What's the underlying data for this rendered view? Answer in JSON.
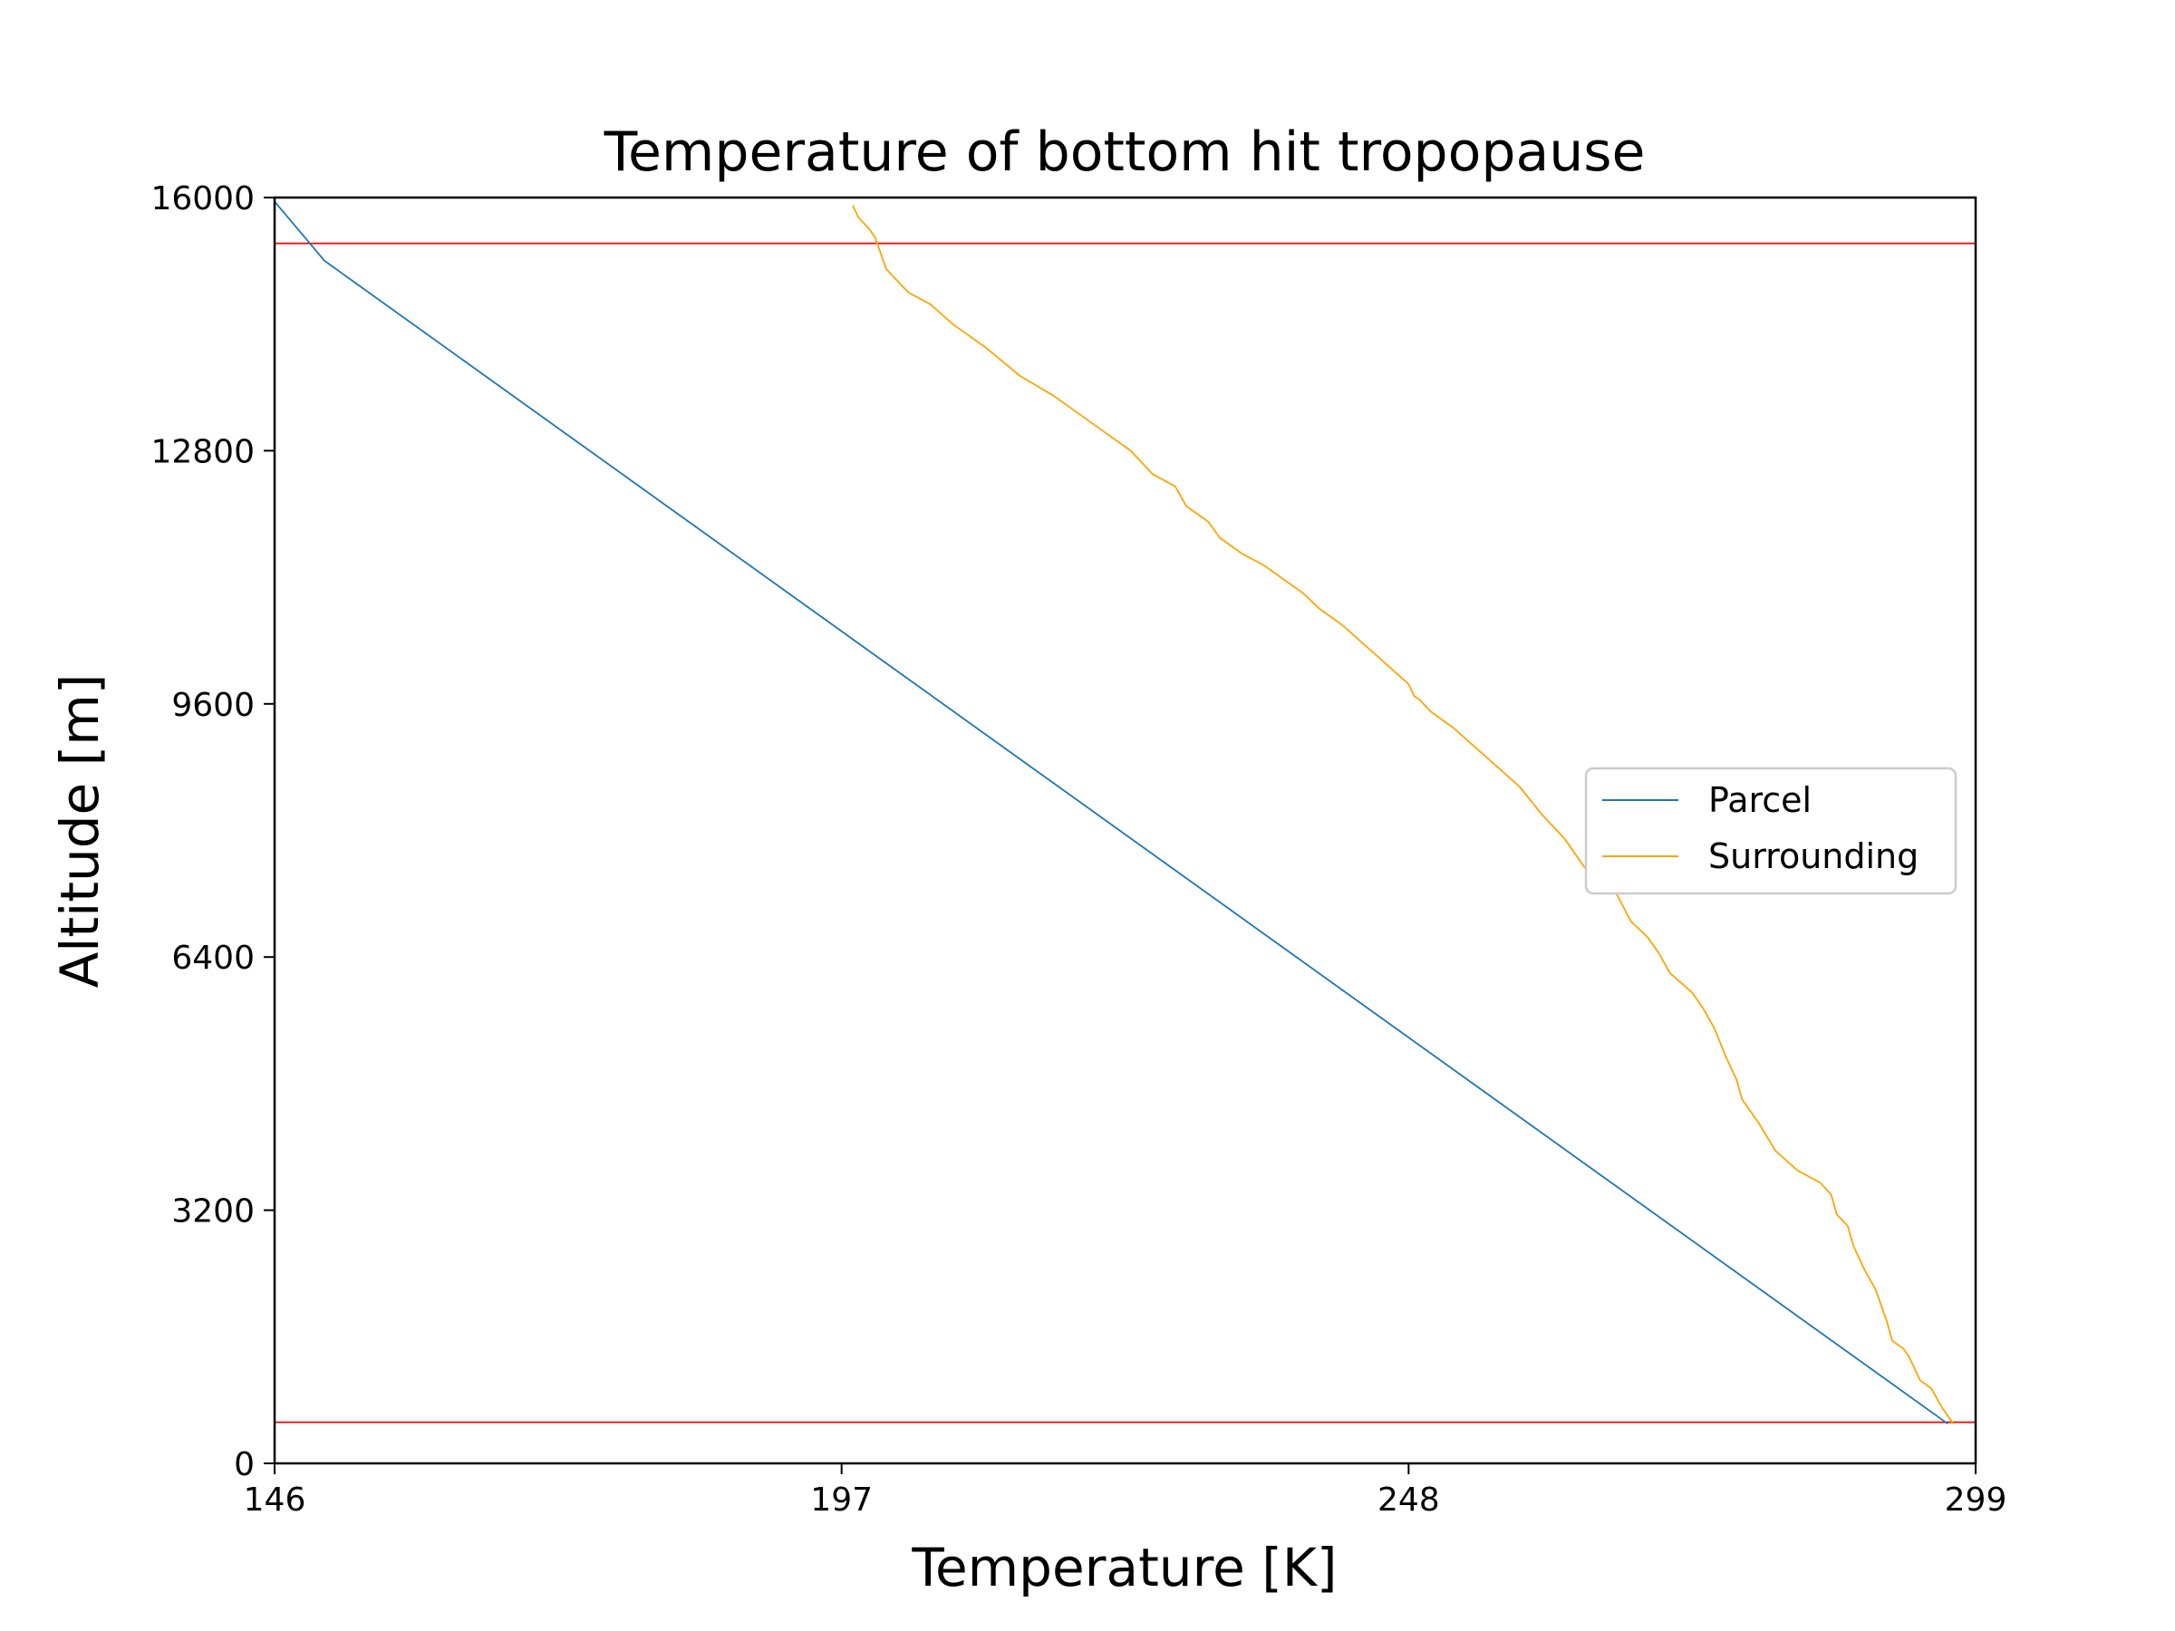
{
  "chart_data": {
    "type": "line",
    "title": "Temperature of bottom hit tropopause",
    "xlabel": "Temperature [K]",
    "ylabel": "Altitude [m]",
    "xlim": [
      146,
      299
    ],
    "ylim": [
      0,
      16000
    ],
    "xticks": [
      "146",
      "197",
      "248",
      "299"
    ],
    "yticks": [
      "0",
      "3200",
      "6400",
      "9600",
      "12800",
      "16000"
    ],
    "legend_position": "center-right",
    "grid": false,
    "series": [
      {
        "name": "Parcel",
        "color": "#1f77b4",
        "x": [
          296.5,
          150.5,
          146
        ],
        "y": [
          500,
          15200,
          15950
        ]
      },
      {
        "name": "Surrounding",
        "color": "#ffa500",
        "x": [
          297,
          296,
          295,
          294,
          293,
          292.5,
          291.5,
          291,
          290.5,
          290,
          289,
          288,
          287.5,
          286.5,
          286,
          285,
          283,
          281,
          279.5,
          278,
          277.5,
          276.5,
          275.5,
          274.5,
          273.5,
          271.5,
          270.5,
          269.5,
          268,
          266.5,
          264,
          262,
          260,
          258,
          256,
          254,
          252,
          250,
          249,
          248.5,
          248,
          246,
          244,
          242,
          240,
          238.5,
          237,
          235,
          233,
          231,
          230,
          228,
          227,
          225,
          223,
          220,
          218,
          216,
          213,
          210,
          207,
          205,
          203,
          202,
          201,
          200.5,
          200,
          199.5,
          198.5,
          198
        ],
        "y": [
          500,
          700,
          950,
          1050,
          1350,
          1450,
          1550,
          1800,
          2000,
          2200,
          2450,
          2750,
          3000,
          3150,
          3400,
          3550,
          3700,
          3950,
          4300,
          4600,
          4850,
          5150,
          5500,
          5750,
          5950,
          6200,
          6450,
          6650,
          6850,
          7250,
          7500,
          7900,
          8200,
          8550,
          8800,
          9050,
          9300,
          9500,
          9650,
          9700,
          9850,
          10100,
          10350,
          10600,
          10800,
          11000,
          11150,
          11350,
          11500,
          11700,
          11900,
          12100,
          12350,
          12500,
          12800,
          13100,
          13300,
          13500,
          13750,
          14100,
          14400,
          14650,
          14800,
          14950,
          15100,
          15300,
          15500,
          15600,
          15750,
          15900
        ]
      }
    ],
    "reference_lines": [
      {
        "orientation": "horizontal",
        "y": 15420,
        "color": "#ff0000"
      },
      {
        "orientation": "horizontal",
        "y": 520,
        "color": "#ff0000"
      }
    ]
  }
}
